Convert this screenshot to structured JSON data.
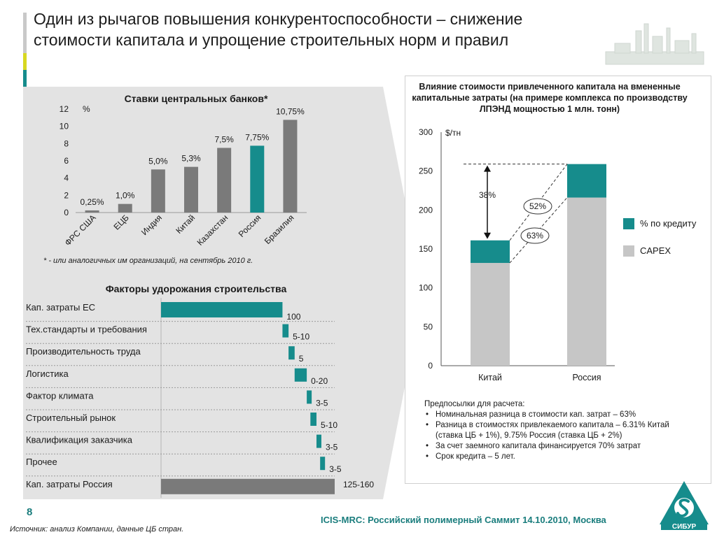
{
  "slide": {
    "title": "Один из рычагов повышения конкурентоспособности – снижение стоимости капитала и упрощение строительных норм и правил",
    "page_number": "8",
    "source": "Источник: анализ Компании, данные ЦБ стран.",
    "event": "ICIS-MRC: Российский полимерный Саммит 14.10.2010, Москва",
    "logo_text": "СИБУР",
    "colors": {
      "teal": "#168c8c",
      "gray": "#7a7a7a",
      "light_gray": "#c6c6c6",
      "panel": "#e3e3e3",
      "accent_yellow": "#d8d820"
    }
  },
  "chart_data": [
    {
      "id": "central_bank_rates",
      "type": "bar",
      "title": "Ставки центральных банков*",
      "ylabel": "%",
      "ylim": [
        0,
        12
      ],
      "yticks": [
        0,
        2,
        4,
        6,
        8,
        10,
        12
      ],
      "categories": [
        "ФРС США",
        "ЕЦБ",
        "Индия",
        "Китай",
        "Казахстан",
        "Россия",
        "Бразилия"
      ],
      "values": [
        0.25,
        1.0,
        5.0,
        5.3,
        7.5,
        7.75,
        10.75
      ],
      "labels": [
        "0,25%",
        "1,0%",
        "5,0%",
        "5,3%",
        "7,5%",
        "7,75%",
        "10,75%"
      ],
      "highlight": "Россия",
      "footnote": "* - или аналогичных им организаций, на сентябрь 2010 г."
    },
    {
      "id": "construction_cost_factors",
      "type": "bar",
      "orientation": "horizontal-waterfall",
      "title": "Факторы удорожания строительства",
      "categories": [
        "Кап. затраты ЕС",
        "Тех.стандарты и требования",
        "Производительность труда",
        "Логистика",
        "Фактор климата",
        "Строительный рынок",
        "Квалификация заказчика",
        "Прочее",
        "Кап. затраты Россия"
      ],
      "start": [
        0,
        100,
        105,
        110,
        120,
        123,
        128,
        131,
        0
      ],
      "values": [
        100,
        5,
        5,
        10,
        3,
        5,
        3,
        3,
        143
      ],
      "labels": [
        "100",
        "5-10",
        "5",
        "0-20",
        "3-5",
        "5-10",
        "3-5",
        "3-5",
        "125-160"
      ]
    },
    {
      "id": "annualized_capex",
      "type": "bar",
      "stacked": true,
      "title": "Влияние стоимости привлеченного капитала на вмененные капитальные затраты (на примере комплекса по производству ЛПЭНД мощностью 1 млн. тонн)",
      "ylabel": "$/тн",
      "ylim": [
        0,
        300
      ],
      "yticks": [
        0,
        50,
        100,
        150,
        200,
        250,
        300
      ],
      "categories": [
        "Китай",
        "Россия"
      ],
      "series": [
        {
          "name": "CAPEX",
          "values": [
            132,
            216
          ]
        },
        {
          "name": "% по кредиту",
          "values": [
            29,
            43
          ]
        }
      ],
      "annotations": [
        "38%",
        "52%",
        "63%"
      ],
      "assumptions_title": "Предпосылки для расчета:",
      "assumptions": [
        "Номинальная разница в стоимости кап. затрат – 63%",
        "Разница в стоимостях привлекаемого капитала – 6.31% Китай (ставка ЦБ + 1%), 9.75% Россия (ставка ЦБ + 2%)",
        "За счет заемного капитала финансируется 70% затрат",
        "Срок кредита – 5 лет."
      ]
    }
  ]
}
